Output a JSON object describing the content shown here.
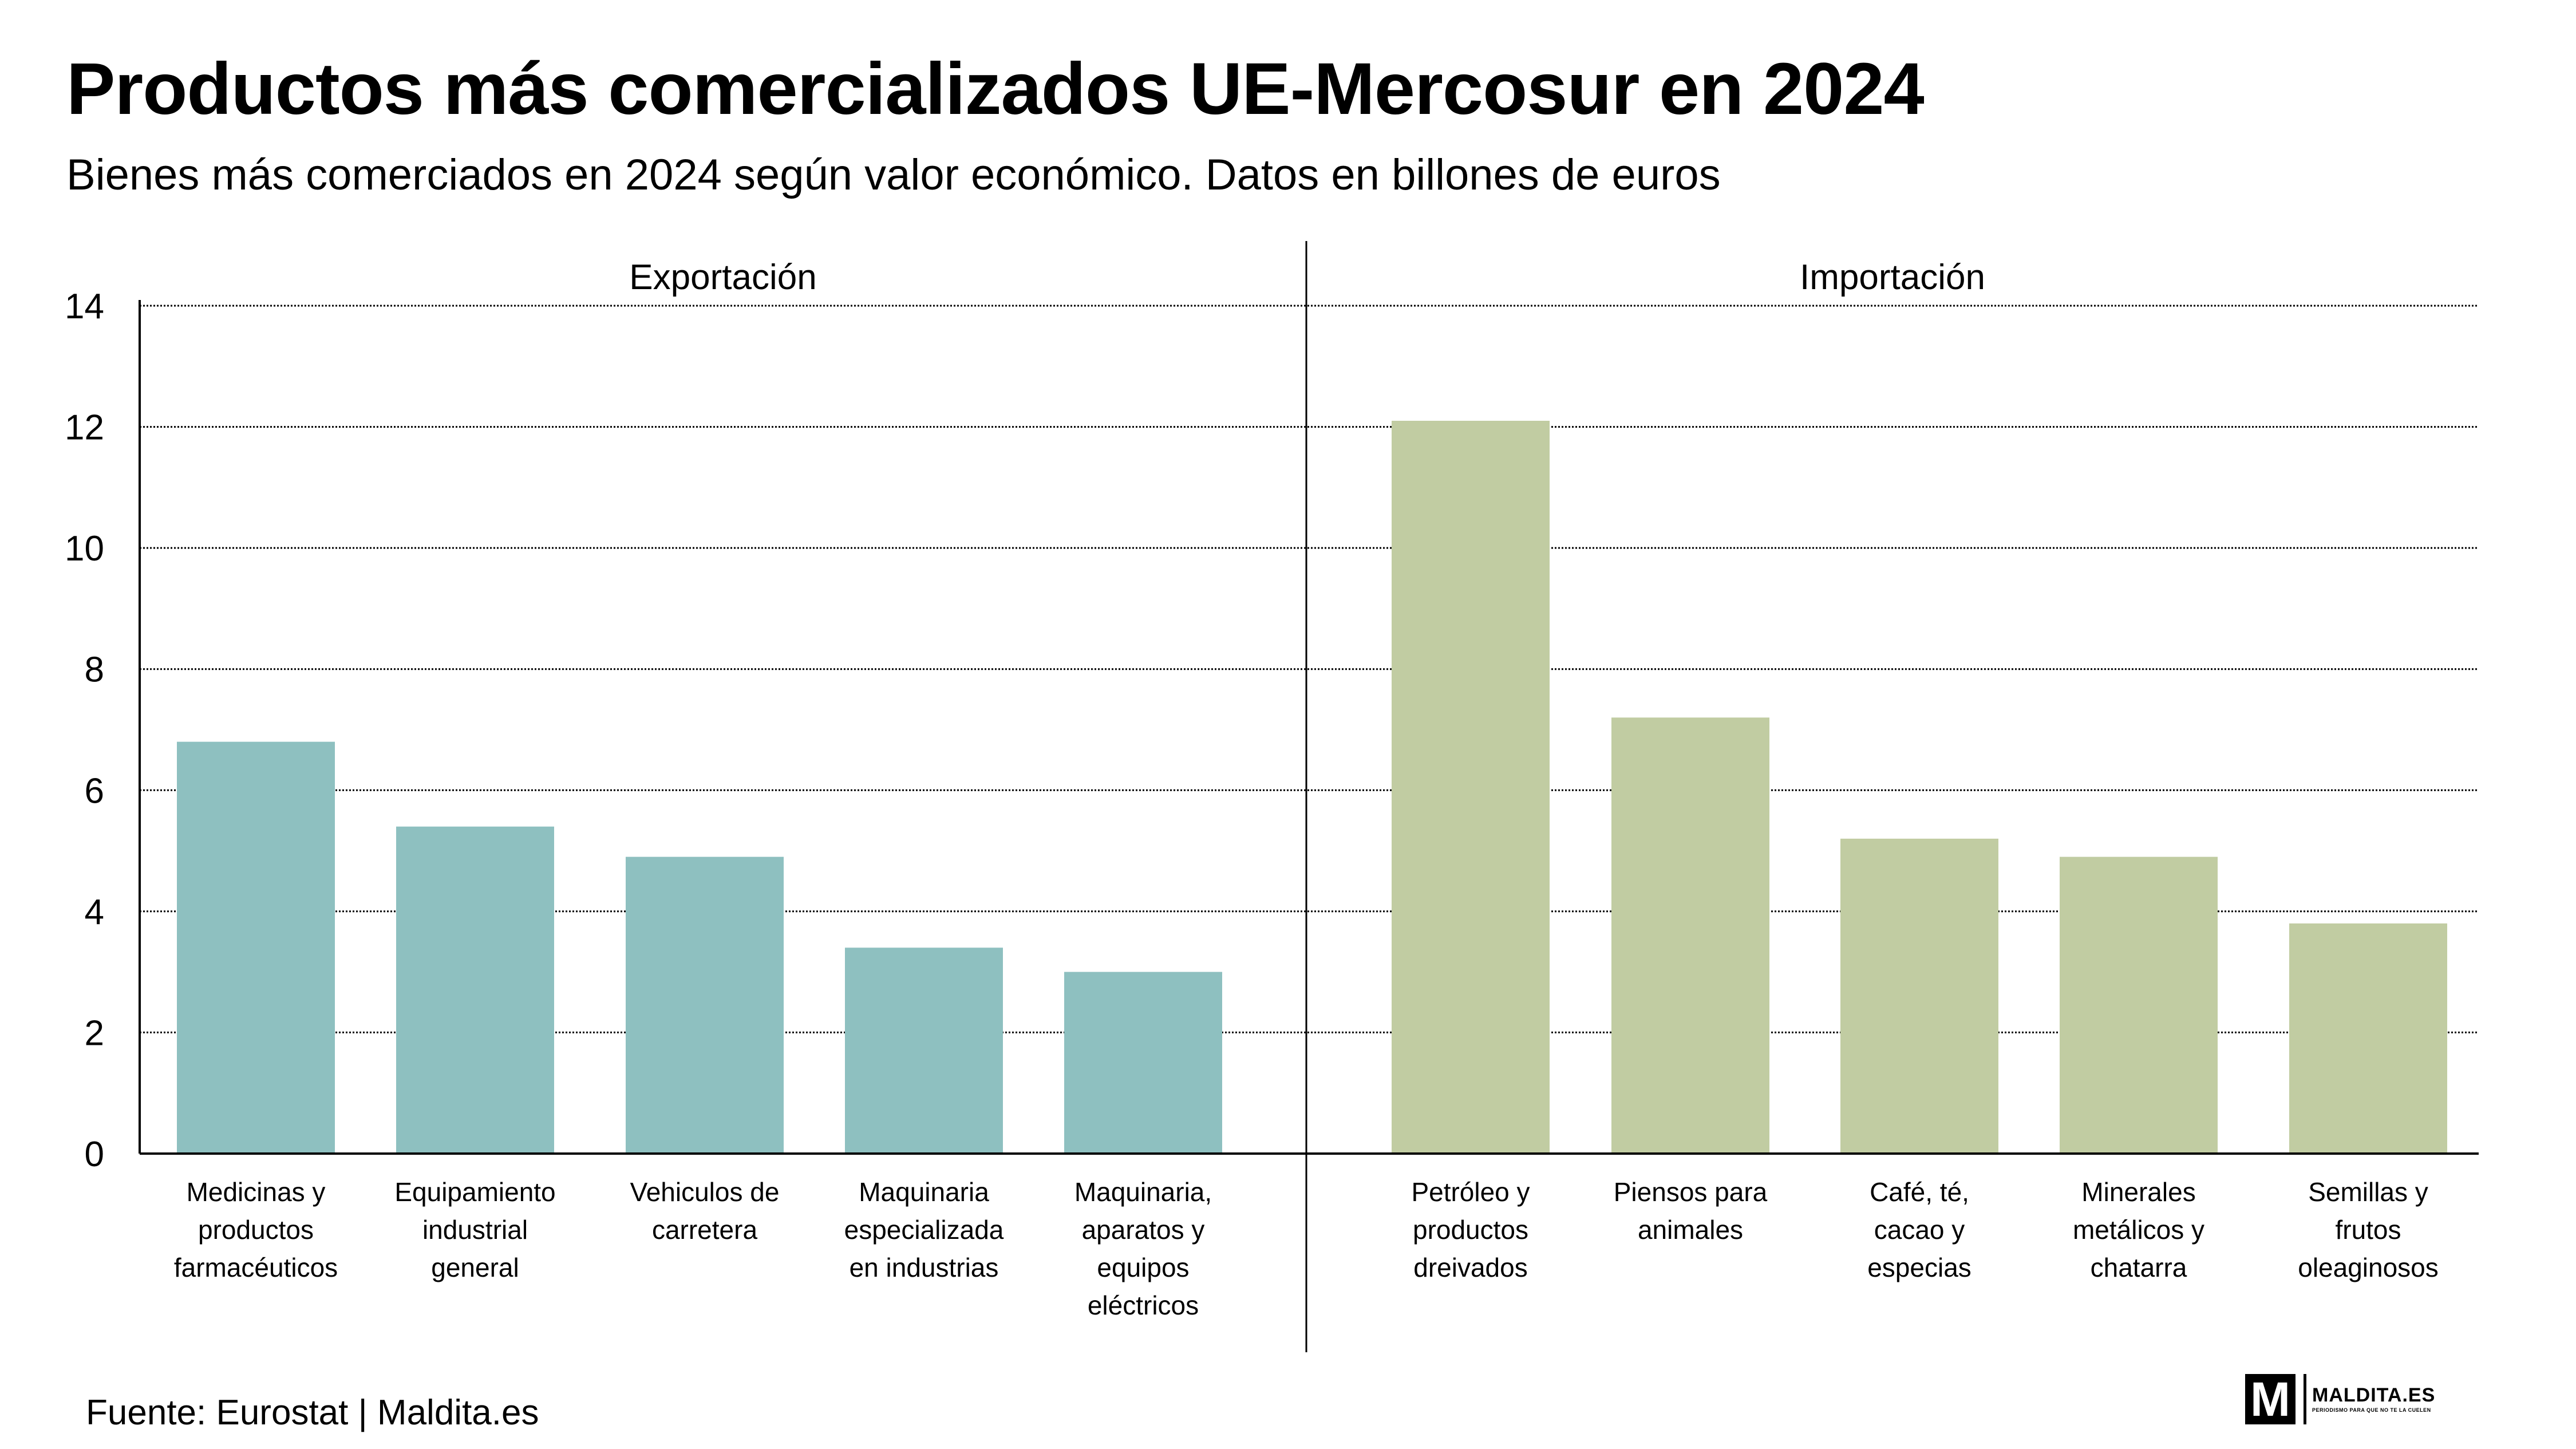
{
  "header": {
    "title": "Productos más comercializados UE-Mercosur en 2024",
    "subtitle": "Bienes más comerciados en 2024 según valor económico. Datos en billones de euros"
  },
  "footer": {
    "source": "Fuente: Eurostat | Maldita.es",
    "logo_letter": "M",
    "logo_name": "MALDITA.ES",
    "logo_tagline": "PERIODISMO PARA QUE NO TE LA CUELEN"
  },
  "colors": {
    "export": "#8ec0c0",
    "import": "#c1cca2",
    "text": "#000000",
    "grid": "#000000"
  },
  "chart_data": {
    "type": "bar",
    "title": "Productos más comercializados UE-Mercosur en 2024",
    "subtitle": "Bienes más comerciados en 2024 según valor económico. Datos en billones de euros",
    "xlabel": "",
    "ylabel": "",
    "ylim": [
      0,
      14
    ],
    "yticks": [
      "0",
      "2",
      "4",
      "6",
      "8",
      "10",
      "12",
      "14"
    ],
    "grid": true,
    "legend": "none",
    "panels": [
      {
        "name": "Exportación",
        "color": "#8ec0c0",
        "categories": [
          [
            "Medicinas y",
            "productos",
            "farmacéuticos"
          ],
          [
            "Equipamiento",
            "industrial",
            "general"
          ],
          [
            "Vehiculos de",
            "carretera"
          ],
          [
            "Maquinaria",
            "especializada",
            "en industrias"
          ],
          [
            "Maquinaria,",
            "aparatos y",
            "equipos",
            "eléctricos"
          ]
        ],
        "values": [
          6.8,
          5.4,
          4.9,
          3.4,
          3.0
        ]
      },
      {
        "name": "Importación",
        "color": "#c1cca2",
        "categories": [
          [
            "Petróleo y",
            "productos",
            "dreivados"
          ],
          [
            "Piensos para",
            "animales"
          ],
          [
            "Café, té,",
            "cacao y",
            "especias"
          ],
          [
            "Minerales",
            "metálicos y",
            "chatarra"
          ],
          [
            "Semillas y",
            "frutos",
            "oleaginosos"
          ]
        ],
        "values": [
          12.1,
          7.2,
          5.2,
          4.9,
          3.8
        ]
      }
    ]
  }
}
